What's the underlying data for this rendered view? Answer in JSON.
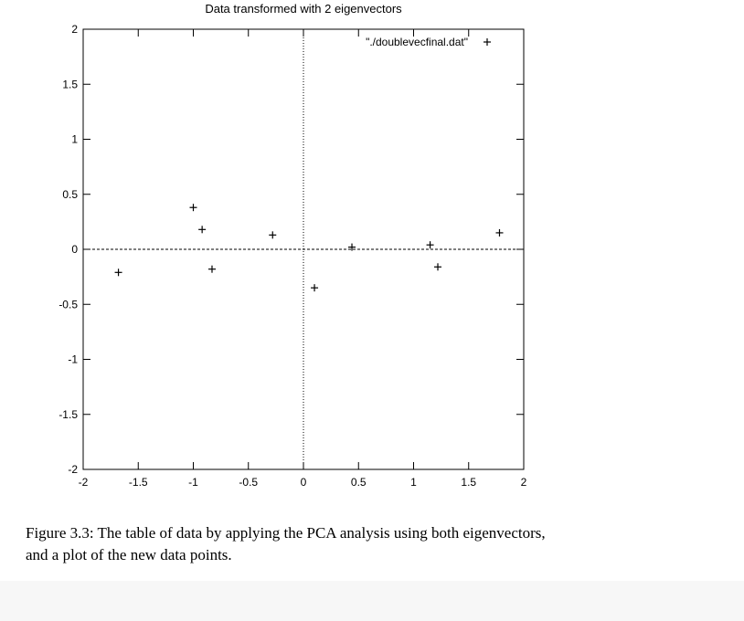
{
  "chart_data": {
    "type": "scatter",
    "title": "Data transformed with 2 eigenvectors",
    "xlabel": "",
    "ylabel": "",
    "xlim": [
      -2,
      2
    ],
    "ylim": [
      -2,
      2
    ],
    "x_ticks": [
      "-2",
      "-1.5",
      "-1",
      "-0.5",
      "0",
      "0.5",
      "1",
      "1.5",
      "2"
    ],
    "y_ticks": [
      "2",
      "1.5",
      "1",
      "0.5",
      "0",
      "-0.5",
      "-1",
      "-1.5",
      "-2"
    ],
    "grid": false,
    "zero_axes": true,
    "legend": {
      "position": "top-right",
      "label": "\"./doublevecfinal.dat\""
    },
    "series": [
      {
        "name": "\"./doublevecfinal.dat\"",
        "marker": "plus",
        "points": [
          {
            "x": -1.68,
            "y": -0.21
          },
          {
            "x": -1.0,
            "y": 0.38
          },
          {
            "x": -0.92,
            "y": 0.18
          },
          {
            "x": -0.83,
            "y": -0.18
          },
          {
            "x": -0.28,
            "y": 0.13
          },
          {
            "x": 0.1,
            "y": -0.35
          },
          {
            "x": 0.44,
            "y": 0.02
          },
          {
            "x": 1.15,
            "y": 0.04
          },
          {
            "x": 1.22,
            "y": -0.16
          },
          {
            "x": 1.78,
            "y": 0.15
          }
        ]
      }
    ]
  },
  "caption": {
    "line1": "Figure 3.3: The table of data by applying the PCA analysis using both eigenvectors,",
    "line2": "and a plot of the new data points."
  },
  "colors": {
    "axis": "#000000",
    "marker": "#000000",
    "background": "#ffffff"
  }
}
